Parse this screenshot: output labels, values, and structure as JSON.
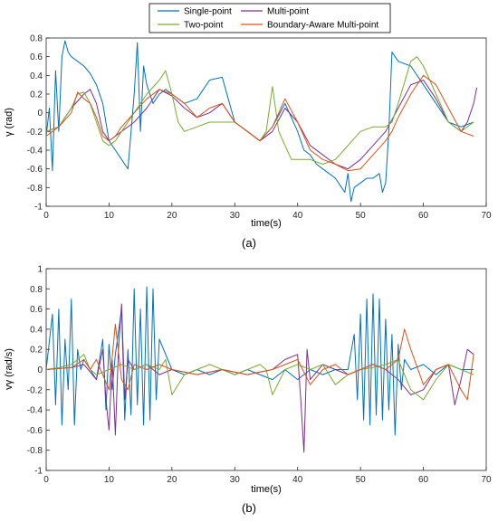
{
  "legend": {
    "entries": [
      {
        "name": "Single-point",
        "color": "#0072BD"
      },
      {
        "name": "Multi-point",
        "color": "#7E2F8E"
      },
      {
        "name": "Two-point",
        "color": "#77AC30"
      },
      {
        "name": "Boundary-Aware Multi-point",
        "color": "#D95319"
      }
    ]
  },
  "chart_data": [
    {
      "type": "line",
      "caption": "(a)",
      "xlabel": "time(s)",
      "ylabel": "γ (rad)",
      "xlim": [
        0,
        70
      ],
      "ylim": [
        -1,
        0.8
      ],
      "xticks": [
        0,
        10,
        20,
        30,
        40,
        50,
        60,
        70
      ],
      "yticks": [
        -1,
        -0.8,
        -0.6,
        -0.4,
        -0.2,
        0,
        0.2,
        0.4,
        0.6,
        0.8
      ],
      "ytick_labels": [
        "-1",
        "-0.8",
        "-0.6",
        "-0.4",
        "-0.2",
        "0",
        "0.2",
        "0.4",
        "0.6",
        "0.8"
      ],
      "grid": false,
      "series": [
        {
          "name": "Single-point",
          "color": "#0072BD",
          "x": [
            0,
            0.5,
            1,
            1.5,
            2,
            2.5,
            3,
            3.5,
            4,
            5,
            6,
            7,
            8,
            9,
            10,
            11,
            12,
            13,
            14,
            14.5,
            15,
            15.5,
            16,
            17,
            18,
            19,
            20,
            22,
            24,
            26,
            28,
            30,
            32,
            34,
            36,
            38,
            40,
            41,
            42,
            43,
            44,
            45,
            46,
            47,
            47.5,
            48,
            48.5,
            49,
            50,
            51,
            52,
            53,
            53.5,
            54,
            54.5,
            55,
            56,
            58,
            60,
            62,
            64,
            66,
            68
          ],
          "values": [
            -0.25,
            0.05,
            -0.62,
            0.45,
            -0.2,
            0.6,
            0.77,
            0.65,
            0.6,
            0.55,
            0.5,
            0.42,
            0.3,
            0.1,
            -0.3,
            -0.4,
            -0.5,
            -0.6,
            0.2,
            0.75,
            -0.2,
            0.5,
            0.3,
            0.1,
            0.2,
            0.25,
            0.2,
            0.1,
            0.15,
            0.35,
            0.38,
            -0.1,
            -0.2,
            -0.3,
            -0.15,
            0.1,
            -0.2,
            -0.4,
            -0.45,
            -0.55,
            -0.6,
            -0.65,
            -0.7,
            -0.8,
            -0.85,
            -0.65,
            -0.95,
            -0.8,
            -0.75,
            -0.7,
            -0.7,
            -0.65,
            -0.85,
            -0.75,
            -0.2,
            0.65,
            0.55,
            0.5,
            0.3,
            0.1,
            -0.1,
            -0.15,
            -0.1
          ]
        },
        {
          "name": "Multi-point",
          "color": "#7E2F8E",
          "x": [
            0,
            2,
            4,
            6,
            7,
            8,
            9,
            10,
            11,
            12,
            14,
            16,
            18,
            20,
            22,
            24,
            26,
            28,
            30,
            32,
            34,
            36,
            38,
            40,
            42,
            44,
            46,
            48,
            50,
            52,
            54,
            56,
            58,
            60,
            62,
            64,
            66,
            67,
            68,
            68.5
          ],
          "values": [
            -0.2,
            -0.15,
            0.05,
            0.2,
            0.25,
            0.1,
            -0.2,
            -0.3,
            -0.25,
            -0.2,
            -0.1,
            0.05,
            0.25,
            0.18,
            0.05,
            -0.05,
            0.0,
            0.1,
            -0.1,
            -0.2,
            -0.3,
            -0.2,
            0.05,
            -0.1,
            -0.35,
            -0.45,
            -0.55,
            -0.6,
            -0.5,
            -0.35,
            -0.2,
            0.05,
            0.3,
            0.35,
            0.15,
            -0.1,
            -0.2,
            -0.1,
            0.1,
            0.27
          ]
        },
        {
          "name": "Two-point",
          "color": "#77AC30",
          "x": [
            0,
            2,
            4,
            5,
            6,
            7,
            8,
            9,
            10,
            11,
            12,
            14,
            16,
            18,
            19,
            20,
            21,
            22,
            24,
            26,
            28,
            30,
            32,
            34,
            35,
            36,
            37,
            38,
            39,
            40,
            42,
            44,
            46,
            48,
            50,
            52,
            54,
            55,
            56,
            58,
            59,
            60,
            62,
            64,
            66,
            68
          ],
          "values": [
            -0.2,
            -0.15,
            0.05,
            0.2,
            0.22,
            0.1,
            -0.1,
            -0.3,
            -0.35,
            -0.3,
            -0.2,
            0.0,
            0.2,
            0.35,
            0.45,
            0.2,
            -0.1,
            -0.2,
            -0.15,
            -0.1,
            -0.1,
            -0.1,
            -0.2,
            -0.3,
            -0.2,
            0.28,
            -0.2,
            -0.35,
            -0.5,
            -0.5,
            -0.5,
            -0.55,
            -0.5,
            -0.35,
            -0.2,
            -0.15,
            -0.15,
            -0.1,
            0.1,
            0.55,
            0.6,
            0.5,
            0.2,
            -0.1,
            -0.2,
            -0.1
          ]
        },
        {
          "name": "Boundary-Aware Multi-point",
          "color": "#D95319",
          "x": [
            0,
            2,
            4,
            5,
            6,
            7,
            8,
            9,
            10,
            11,
            12,
            14,
            16,
            18,
            20,
            22,
            24,
            26,
            28,
            30,
            32,
            34,
            36,
            38,
            40,
            42,
            44,
            46,
            48,
            50,
            52,
            54,
            55,
            56,
            58,
            60,
            62,
            64,
            66,
            68
          ],
          "values": [
            -0.25,
            -0.15,
            0.0,
            0.22,
            0.15,
            0.1,
            -0.05,
            -0.25,
            -0.3,
            -0.25,
            -0.15,
            0.0,
            0.15,
            0.25,
            0.2,
            0.1,
            -0.05,
            0.05,
            0.1,
            -0.1,
            -0.2,
            -0.3,
            -0.15,
            0.15,
            -0.1,
            -0.4,
            -0.5,
            -0.55,
            -0.62,
            -0.6,
            -0.45,
            -0.3,
            -0.2,
            -0.05,
            0.2,
            0.4,
            0.3,
            0.05,
            -0.2,
            -0.25
          ]
        }
      ]
    },
    {
      "type": "line",
      "caption": "(b)",
      "xlabel": "time(s)",
      "ylabel": "vγ (rad/s)",
      "xlim": [
        0,
        70
      ],
      "ylim": [
        -1,
        1
      ],
      "xticks": [
        0,
        10,
        20,
        30,
        40,
        50,
        60,
        70
      ],
      "yticks": [
        -1,
        -0.8,
        -0.6,
        -0.4,
        -0.2,
        0,
        0.2,
        0.4,
        0.6,
        0.8,
        1
      ],
      "ytick_labels": [
        "-1",
        "-0.8",
        "-0.6",
        "-0.4",
        "-0.2",
        "0",
        "0.2",
        "0.4",
        "0.6",
        "0.8",
        "1"
      ],
      "grid": false,
      "series": [
        {
          "name": "Single-point",
          "color": "#0072BD",
          "x": [
            0,
            1,
            1.5,
            2,
            2.5,
            3,
            3.5,
            4,
            4.5,
            5,
            5.5,
            6,
            7,
            8,
            9,
            9.5,
            10,
            10.5,
            11,
            12,
            12.5,
            13,
            13.5,
            14,
            14.5,
            15,
            15.5,
            16,
            16.5,
            17,
            17.5,
            18,
            20,
            22,
            24,
            26,
            28,
            30,
            32,
            34,
            36,
            38,
            40,
            42,
            44,
            46,
            48,
            49,
            49.5,
            50,
            50.5,
            51,
            51.5,
            52,
            52.5,
            53,
            53.5,
            54,
            54.5,
            55,
            55.5,
            56,
            56.5,
            57,
            58,
            60,
            62,
            64,
            66,
            68
          ],
          "values": [
            0.0,
            0.55,
            -0.35,
            0.6,
            -0.55,
            0.3,
            -0.2,
            0.7,
            -0.55,
            0.2,
            0.0,
            0.1,
            0.0,
            -0.1,
            0.3,
            -0.4,
            0.25,
            -0.2,
            0.15,
            0.6,
            -0.5,
            0.2,
            -0.45,
            0.8,
            -0.35,
            0.6,
            -0.55,
            0.82,
            -0.5,
            0.8,
            -0.3,
            0.3,
            0.0,
            -0.05,
            0.0,
            -0.05,
            0.0,
            -0.05,
            0.0,
            -0.05,
            -0.1,
            0.0,
            -0.1,
            0.0,
            -0.05,
            0.0,
            0.0,
            0.35,
            -0.3,
            0.55,
            -0.5,
            0.7,
            -0.55,
            0.75,
            -0.45,
            0.7,
            -0.5,
            0.5,
            -0.4,
            0.35,
            -0.65,
            0.25,
            -0.2,
            0.1,
            0.0,
            0.05,
            -0.05,
            0.05,
            0.0,
            0.0
          ]
        },
        {
          "name": "Multi-point",
          "color": "#7E2F8E",
          "x": [
            0,
            4,
            6,
            8,
            9,
            9.5,
            10,
            10.5,
            11,
            11.5,
            12,
            12.5,
            13,
            14,
            16,
            18,
            20,
            24,
            28,
            32,
            36,
            38,
            40,
            40.5,
            41,
            41.5,
            42,
            44,
            46,
            48,
            50,
            52,
            54,
            56,
            58,
            60,
            62,
            64,
            65,
            66,
            67,
            68
          ],
          "values": [
            0.0,
            0.02,
            0.05,
            -0.1,
            0.2,
            -0.3,
            -0.6,
            0.1,
            -0.65,
            0.2,
            0.65,
            -0.3,
            0.1,
            0.0,
            0.05,
            -0.05,
            0.0,
            -0.05,
            0.0,
            -0.05,
            0.0,
            0.1,
            0.15,
            -0.3,
            -0.82,
            0.2,
            -0.1,
            0.05,
            0.0,
            -0.05,
            0.0,
            0.05,
            0.0,
            -0.1,
            -0.25,
            -0.2,
            0.0,
            0.05,
            -0.35,
            -0.1,
            0.2,
            0.15
          ]
        },
        {
          "name": "Two-point",
          "color": "#77AC30",
          "x": [
            0,
            2,
            4,
            6,
            7,
            8,
            10,
            12,
            14,
            16,
            18,
            19,
            20,
            22,
            24,
            26,
            28,
            30,
            32,
            34,
            35,
            36,
            38,
            40,
            42,
            44,
            46,
            48,
            50,
            52,
            54,
            56,
            58,
            60,
            62,
            64,
            66,
            68
          ],
          "values": [
            0.0,
            0.02,
            0.05,
            0.15,
            0.0,
            -0.05,
            0.0,
            0.05,
            0.0,
            0.05,
            0.0,
            0.1,
            -0.25,
            -0.05,
            0.0,
            0.05,
            0.0,
            -0.05,
            0.0,
            0.05,
            0.0,
            -0.25,
            0.0,
            0.05,
            0.0,
            0.05,
            -0.15,
            -0.05,
            0.0,
            0.02,
            0.05,
            0.1,
            -0.2,
            -0.3,
            -0.1,
            0.05,
            0.0,
            -0.05
          ]
        },
        {
          "name": "Boundary-Aware Multi-point",
          "color": "#D95319",
          "x": [
            0,
            4,
            6,
            7,
            8,
            10,
            11,
            12,
            13,
            14,
            16,
            18,
            20,
            24,
            28,
            32,
            36,
            40,
            42,
            44,
            46,
            48,
            50,
            52,
            54,
            56,
            57,
            58,
            60,
            62,
            64,
            66,
            67,
            68
          ],
          "values": [
            0.0,
            0.02,
            0.1,
            0.0,
            0.1,
            -0.2,
            0.45,
            -0.1,
            -0.2,
            0.05,
            0.0,
            0.05,
            0.0,
            -0.05,
            0.0,
            -0.05,
            0.0,
            0.1,
            -0.15,
            0.0,
            0.05,
            -0.05,
            0.0,
            0.05,
            0.0,
            0.1,
            0.4,
            0.2,
            -0.15,
            0.0,
            0.05,
            -0.2,
            -0.3,
            0.15
          ]
        }
      ]
    }
  ]
}
